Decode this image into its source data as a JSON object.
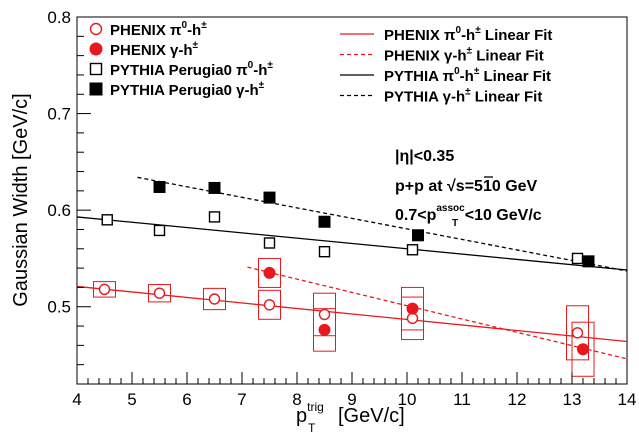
{
  "chart_data": {
    "type": "scatter",
    "xlabel_main": "p",
    "xlabel_sub": "T",
    "xlabel_sup": "trig",
    "xlabel_unit": "[GeV/c]",
    "ylabel": "Gaussian Width [GeV/c]",
    "xlim": [
      4,
      14
    ],
    "ylim": [
      0.42,
      0.8
    ],
    "x_ticks": [
      4,
      5,
      6,
      7,
      8,
      9,
      10,
      11,
      12,
      13,
      14
    ],
    "y_ticks": [
      0.5,
      0.6,
      0.7,
      0.8
    ],
    "colors": {
      "phenix": "#e8191c",
      "pythia": "#000000"
    },
    "series": [
      {
        "name_main": "PHENIX π",
        "name_sup": "0",
        "name_tail": "-h",
        "name_sup2": "±",
        "marker": "open-circle",
        "color": "#e8191c",
        "points": [
          {
            "x": 4.5,
            "y": 0.518,
            "syst_dy": 0.008
          },
          {
            "x": 5.5,
            "y": 0.514,
            "syst_dy": 0.009
          },
          {
            "x": 6.5,
            "y": 0.508,
            "syst_dy": 0.011
          },
          {
            "x": 7.5,
            "y": 0.502,
            "syst_dy": 0.015
          },
          {
            "x": 8.5,
            "y": 0.492,
            "syst_dy": 0.022
          },
          {
            "x": 10.1,
            "y": 0.488,
            "syst_dy": 0.022
          },
          {
            "x": 13.1,
            "y": 0.473,
            "syst_dy": 0.028
          }
        ]
      },
      {
        "name_main": "PHENIX γ",
        "name_sup": "",
        "name_tail": "-h",
        "name_sup2": "±",
        "marker": "filled-circle",
        "color": "#e8191c",
        "points": [
          {
            "x": 7.5,
            "y": 0.535,
            "syst_dy": 0.015
          },
          {
            "x": 8.5,
            "y": 0.476,
            "syst_dy": 0.022
          },
          {
            "x": 10.1,
            "y": 0.498,
            "syst_dy": 0.022
          },
          {
            "x": 13.2,
            "y": 0.456,
            "syst_dy": 0.028
          }
        ]
      },
      {
        "name_main": "PYTHIA Perugia0 π",
        "name_sup": "0",
        "name_tail": "-h",
        "name_sup2": "±",
        "marker": "open-square",
        "color": "#000000",
        "points": [
          {
            "x": 4.55,
            "y": 0.59
          },
          {
            "x": 5.5,
            "y": 0.579
          },
          {
            "x": 6.5,
            "y": 0.593
          },
          {
            "x": 7.5,
            "y": 0.566
          },
          {
            "x": 8.5,
            "y": 0.557
          },
          {
            "x": 10.1,
            "y": 0.559
          },
          {
            "x": 13.1,
            "y": 0.55
          }
        ]
      },
      {
        "name_main": "PYTHIA Perugia0 γ",
        "name_sup": "",
        "name_tail": "-h",
        "name_sup2": "±",
        "marker": "filled-square",
        "color": "#000000",
        "points": [
          {
            "x": 5.5,
            "y": 0.624
          },
          {
            "x": 6.5,
            "y": 0.623
          },
          {
            "x": 7.5,
            "y": 0.613
          },
          {
            "x": 8.5,
            "y": 0.588
          },
          {
            "x": 10.2,
            "y": 0.574
          },
          {
            "x": 13.3,
            "y": 0.547
          }
        ]
      }
    ],
    "fits": [
      {
        "name_main": "PHENIX π",
        "name_sup": "0",
        "name_tail": "-h",
        "name_sup2": "±",
        "name_end": " Linear Fit",
        "color": "#e8191c",
        "dashed": false,
        "x": [
          4,
          14
        ],
        "y": [
          0.521,
          0.464
        ]
      },
      {
        "name_main": "PHENIX γ",
        "name_sup": "",
        "name_tail": "-h",
        "name_sup2": "±",
        "name_end": " Linear Fit",
        "color": "#e8191c",
        "dashed": true,
        "x": [
          7.1,
          14
        ],
        "y": [
          0.541,
          0.446
        ]
      },
      {
        "name_main": "PYTHIA π",
        "name_sup": "0",
        "name_tail": "-h",
        "name_sup2": "±",
        "name_end": " Linear Fit",
        "color": "#000000",
        "dashed": false,
        "x": [
          4,
          14
        ],
        "y": [
          0.593,
          0.538
        ]
      },
      {
        "name_main": "PYTHIA γ",
        "name_sup": "",
        "name_tail": "-h",
        "name_sup2": "±",
        "name_end": " Linear Fit",
        "color": "#000000",
        "dashed": true,
        "x": [
          5.1,
          14
        ],
        "y": [
          0.634,
          0.537
        ]
      }
    ],
    "annotations": {
      "eta": "|η|<0.35",
      "system_pre": "p+p at ",
      "sqrt_s": "s",
      "energy": "=510 GeV",
      "assoc_pre": "0.7<p",
      "assoc_sub": "T",
      "assoc_sup": "assoc",
      "assoc_post": "<10 GeV/c"
    }
  }
}
